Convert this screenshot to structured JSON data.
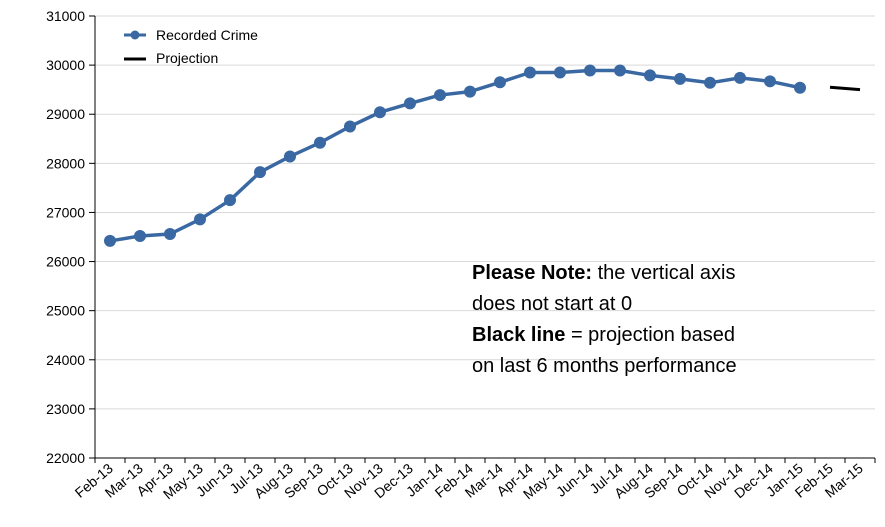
{
  "chart_data": {
    "type": "line",
    "categories": [
      "Feb-13",
      "Mar-13",
      "Apr-13",
      "May-13",
      "Jun-13",
      "Jul-13",
      "Aug-13",
      "Sep-13",
      "Oct-13",
      "Nov-13",
      "Dec-13",
      "Jan-14",
      "Feb-14",
      "Mar-14",
      "Apr-14",
      "May-14",
      "Jun-14",
      "Jul-14",
      "Aug-14",
      "Sep-14",
      "Oct-14",
      "Nov-14",
      "Dec-14",
      "Jan-15",
      "Feb-15",
      "Mar-15"
    ],
    "series": [
      {
        "name": "Recorded Crime",
        "color": "#3a68a3",
        "marker": "circle",
        "values": [
          26420,
          26520,
          26560,
          26860,
          27250,
          27820,
          28140,
          28420,
          28750,
          29040,
          29220,
          29390,
          29460,
          29650,
          29850,
          29850,
          29890,
          29890,
          29790,
          29720,
          29640,
          29740,
          29670,
          29540,
          null,
          null
        ]
      },
      {
        "name": "Projection",
        "color": "#000000",
        "marker": "none",
        "values": [
          null,
          null,
          null,
          null,
          null,
          null,
          null,
          null,
          null,
          null,
          null,
          null,
          null,
          null,
          null,
          null,
          null,
          null,
          null,
          null,
          null,
          null,
          null,
          null,
          29550,
          29500
        ]
      }
    ],
    "ylim": [
      22000,
      31000
    ],
    "yticks": [
      22000,
      23000,
      24000,
      25000,
      26000,
      27000,
      28000,
      29000,
      30000,
      31000
    ],
    "grid": true,
    "legend": "top-left",
    "title": "",
    "xlabel": "",
    "ylabel": "",
    "note": {
      "line1_bold": "Please Note:",
      "line1_rest": " the vertical axis",
      "line2": "does not start at 0",
      "line3_bold": "Black line",
      "line3_rest": " = projection based",
      "line4": "on last 6 months performance"
    }
  }
}
